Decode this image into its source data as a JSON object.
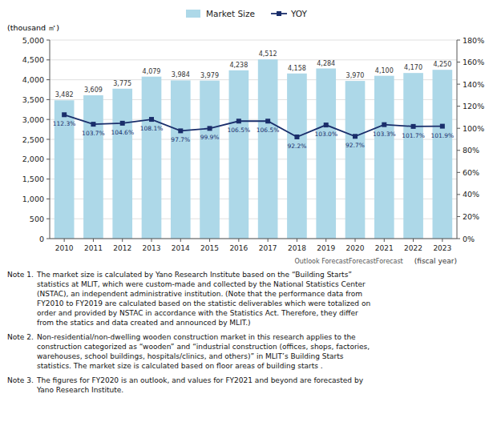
{
  "chart_data": {
    "type": "bar",
    "y_label": "(thousand ㎡)",
    "x_label": "(fiscal year)",
    "categories": [
      "2010",
      "2011",
      "2012",
      "2013",
      "2014",
      "2015",
      "2016",
      "2017",
      "2018",
      "2019",
      "2020",
      "2021",
      "2022",
      "2023"
    ],
    "series": [
      {
        "name": "Market Size",
        "type": "bar",
        "color": "#add8e8",
        "values": [
          3482,
          3609,
          3775,
          4079,
          3984,
          3979,
          4238,
          4512,
          4158,
          4284,
          3970,
          4100,
          4170,
          4250
        ],
        "value_labels": [
          "3,482",
          "3,609",
          "3,775",
          "4,079",
          "3,984",
          "3,979",
          "4,238",
          "4,512",
          "4,158",
          "4,284",
          "3,970",
          "4,100",
          "4,170",
          "4,250"
        ]
      },
      {
        "name": "YOY",
        "type": "line",
        "axis": "y2",
        "color": "#1a2e6b",
        "marker": "square",
        "line_style": "solid",
        "values": [
          112.3,
          103.7,
          104.6,
          108.1,
          97.7,
          99.9,
          106.5,
          106.5,
          92.2,
          103.0,
          92.7,
          103.3,
          101.7,
          101.9
        ],
        "value_labels": [
          "112.3%",
          "103.7%",
          "104.6%",
          "108.1%",
          "97.7%",
          "99.9%",
          "106.5%",
          "106.5%",
          "92.2%",
          "103.0%",
          "92.7%",
          "103.3%",
          "101.7%",
          "101.9%"
        ]
      }
    ],
    "ylim": [
      0,
      5000
    ],
    "yticks": [
      0,
      500,
      {
        "value": 1000,
        "label": "1,000"
      },
      {
        "value": 1500,
        "label": "1,500"
      },
      {
        "value": 2000,
        "label": "2,000"
      },
      {
        "value": 2500,
        "label": "2,500"
      },
      {
        "value": 3000,
        "label": "3,000"
      },
      {
        "value": 3500,
        "label": "3,500"
      },
      {
        "value": 4000,
        "label": "4,000"
      },
      {
        "value": 4500,
        "label": "4,500"
      },
      {
        "value": 5000,
        "label": "5,000"
      }
    ],
    "y2lim": [
      0,
      180
    ],
    "y2ticks": [
      {
        "value": 0,
        "label": "0%"
      },
      {
        "value": 20,
        "label": "20%"
      },
      {
        "value": 40,
        "label": "40%"
      },
      {
        "value": 60,
        "label": "60%"
      },
      {
        "value": 80,
        "label": "80%"
      },
      {
        "value": 100,
        "label": "100%"
      },
      {
        "value": 120,
        "label": "120%"
      },
      {
        "value": 140,
        "label": "140%"
      },
      {
        "value": 160,
        "label": "160%"
      },
      {
        "value": 180,
        "label": "180%"
      }
    ],
    "grid": true,
    "legend": "top",
    "data_labels": true,
    "annotations": [
      "Outlook ForecastForecastForecast"
    ],
    "notes": [
      {
        "label": "Note 1.",
        "text": "The market size is calculated by Yano Research Institute based on the “Building Starts”\nstatistics at MLIT, which were custom-made and collected by the National Statistics Center\n(NSTAC), an independent administrative institution. (Note that the performance data from\nFY2010 to FY2019 are calculated based on the statistic deliverables which were totalized on\norder and provided by NSTAC in accordance with the Statistics Act. Therefore, they differ\nfrom the statics and data created and announced by MLIT.)"
      },
      {
        "label": "Note 2.",
        "text": "Non-residential/non-dwelling wooden construction market in this research applies to the\nconstruction categorized as “wooden” and “industrial construction (offices, shops, factories,\nwarehouses, school buildings, hospitals/clinics, and others)” in MLIT’s Building Starts\nstatistics. The market size is calculated based on floor areas of building starts ."
      },
      {
        "label": "Note 3.",
        "text": "The figures for FY2020 is an outlook, and values for FY2021 and beyond are forecasted by\nYano Research Institute."
      }
    ]
  }
}
